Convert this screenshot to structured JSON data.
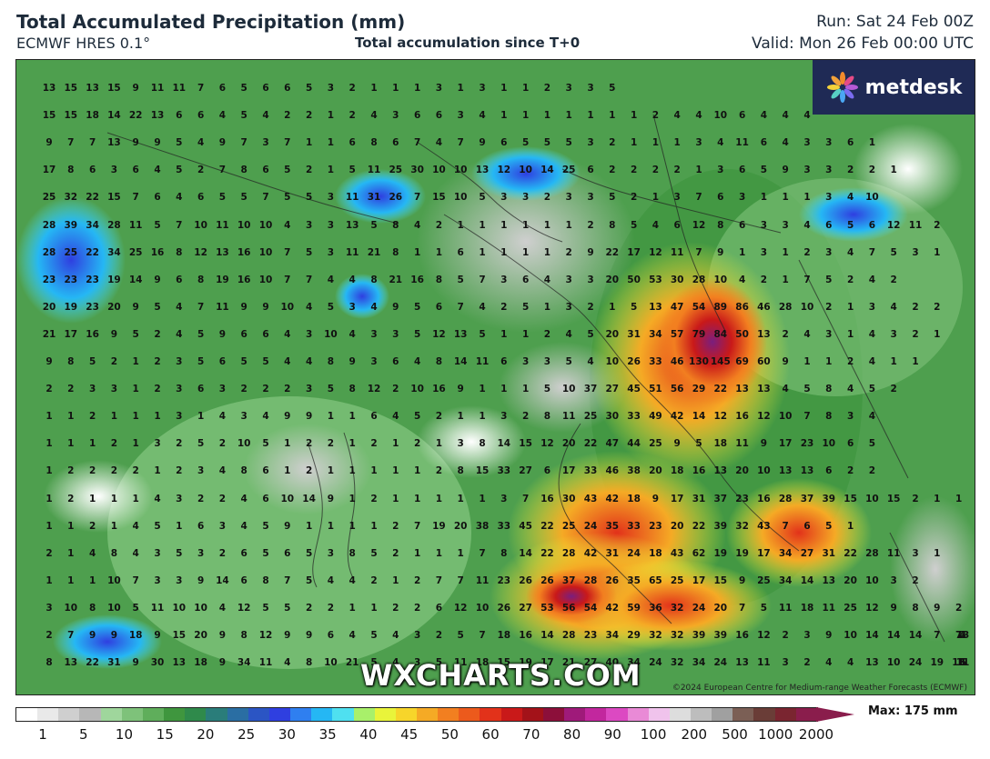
{
  "header": {
    "title": "Total Accumulated Precipitation (mm)",
    "model": "ECMWF HRES 0.1°",
    "subtitle": "Total accumulation since T+0",
    "run": "Run: Sat 24 Feb 00Z",
    "valid": "Valid: Mon 26 Feb 00:00 UTC"
  },
  "logo": {
    "text": "metdesk",
    "icon": "metdesk-flower-icon"
  },
  "watermark": "WXCHARTS.COM",
  "copyright": "©2024 European Centre for Medium-range Weather Forecasts (ECMWF)",
  "legend": {
    "max_label": "Max: 175 mm",
    "tick_labels": [
      "1",
      "5",
      "10",
      "15",
      "20",
      "25",
      "30",
      "35",
      "40",
      "45",
      "50",
      "60",
      "70",
      "80",
      "90",
      "100",
      "200",
      "500",
      "1000",
      "2000"
    ],
    "colors": [
      "#ffffff",
      "#e9e9e9",
      "#cfcfcf",
      "#b7b7b7",
      "#9fd69c",
      "#7ec27a",
      "#5fae5b",
      "#3f963e",
      "#2f8a4b",
      "#2a7d7a",
      "#2a6ea3",
      "#2b55c4",
      "#2f3fe0",
      "#2f7ff0",
      "#25b7f4",
      "#4fe0f0",
      "#a8f06a",
      "#e9f43a",
      "#f7d52a",
      "#f5aa25",
      "#f27f20",
      "#ec5a1c",
      "#e2321a",
      "#c91919",
      "#a31219",
      "#8c0f3a",
      "#9f1a7a",
      "#c2279e",
      "#dc49c2",
      "#e98ad6",
      "#f0c3ec",
      "#dddddd",
      "#bdbdbd",
      "#a0a0a0",
      "#7b5f55",
      "#6a3d37",
      "#7a2530",
      "#8a1d4c"
    ]
  },
  "map_values": [
    [
      "13",
      "15",
      "13",
      "15",
      "9",
      "11",
      "11",
      "7",
      "6",
      "5",
      "6",
      "6",
      "5",
      "3",
      "2",
      "1",
      "1",
      "1",
      "3",
      "1",
      "3",
      "1",
      "1",
      "2",
      "3",
      "3",
      "5"
    ],
    [
      "15",
      "15",
      "18",
      "14",
      "22",
      "13",
      "6",
      "6",
      "4",
      "5",
      "4",
      "2",
      "2",
      "1",
      "2",
      "4",
      "3",
      "6",
      "6",
      "3",
      "4",
      "1",
      "1",
      "1",
      "1",
      "1",
      "1",
      "1",
      "2",
      "4",
      "4",
      "10",
      "6",
      "4",
      "4",
      "4"
    ],
    [
      "9",
      "7",
      "7",
      "13",
      "9",
      "9",
      "5",
      "4",
      "9",
      "7",
      "3",
      "7",
      "1",
      "1",
      "6",
      "8",
      "6",
      "7",
      "4",
      "7",
      "9",
      "6",
      "5",
      "5",
      "5",
      "3",
      "2",
      "1",
      "1",
      "1",
      "3",
      "4",
      "11",
      "6",
      "4",
      "3",
      "3",
      "6",
      "1"
    ],
    [
      "17",
      "8",
      "6",
      "3",
      "6",
      "4",
      "5",
      "2",
      "7",
      "8",
      "6",
      "5",
      "2",
      "1",
      "5",
      "11",
      "25",
      "30",
      "10",
      "10",
      "13",
      "12",
      "10",
      "14",
      "25",
      "6",
      "2",
      "2",
      "2",
      "2",
      "1",
      "3",
      "6",
      "5",
      "9",
      "3",
      "3",
      "2",
      "2",
      "1"
    ],
    [
      "25",
      "32",
      "22",
      "15",
      "7",
      "6",
      "4",
      "6",
      "5",
      "5",
      "7",
      "5",
      "5",
      "3",
      "11",
      "31",
      "26",
      "7",
      "15",
      "10",
      "5",
      "3",
      "3",
      "2",
      "3",
      "3",
      "5",
      "2",
      "1",
      "3",
      "7",
      "6",
      "3",
      "1",
      "1",
      "1",
      "3",
      "4",
      "10"
    ],
    [
      "28",
      "39",
      "34",
      "28",
      "11",
      "5",
      "7",
      "10",
      "11",
      "10",
      "10",
      "4",
      "3",
      "3",
      "13",
      "5",
      "8",
      "4",
      "2",
      "1",
      "1",
      "1",
      "1",
      "1",
      "1",
      "2",
      "8",
      "5",
      "4",
      "6",
      "12",
      "8",
      "6",
      "3",
      "3",
      "4",
      "6",
      "5",
      "6",
      "12",
      "11",
      "2"
    ],
    [
      "28",
      "25",
      "22",
      "34",
      "25",
      "16",
      "8",
      "12",
      "13",
      "16",
      "10",
      "7",
      "5",
      "3",
      "11",
      "21",
      "8",
      "1",
      "1",
      "6",
      "1",
      "1",
      "1",
      "1",
      "2",
      "9",
      "22",
      "17",
      "12",
      "11",
      "7",
      "9",
      "1",
      "3",
      "1",
      "2",
      "3",
      "4",
      "7",
      "5",
      "3",
      "1"
    ],
    [
      "23",
      "23",
      "23",
      "19",
      "14",
      "9",
      "6",
      "8",
      "19",
      "16",
      "10",
      "7",
      "7",
      "4",
      "4",
      "8",
      "21",
      "16",
      "8",
      "5",
      "7",
      "3",
      "6",
      "4",
      "3",
      "3",
      "20",
      "50",
      "53",
      "30",
      "28",
      "10",
      "4",
      "2",
      "1",
      "7",
      "5",
      "2",
      "4",
      "2"
    ],
    [
      "20",
      "19",
      "23",
      "20",
      "9",
      "5",
      "4",
      "7",
      "11",
      "9",
      "9",
      "10",
      "4",
      "5",
      "3",
      "4",
      "9",
      "5",
      "6",
      "7",
      "4",
      "2",
      "5",
      "1",
      "3",
      "2",
      "1",
      "5",
      "13",
      "47",
      "54",
      "89",
      "86",
      "46",
      "28",
      "10",
      "2",
      "1",
      "3",
      "4",
      "2",
      "2"
    ],
    [
      "21",
      "17",
      "16",
      "9",
      "5",
      "2",
      "4",
      "5",
      "9",
      "6",
      "6",
      "4",
      "3",
      "10",
      "4",
      "3",
      "3",
      "5",
      "12",
      "13",
      "5",
      "1",
      "1",
      "2",
      "4",
      "5",
      "20",
      "31",
      "34",
      "57",
      "79",
      "84",
      "50",
      "13",
      "2",
      "4",
      "3",
      "1",
      "4",
      "3",
      "2",
      "1"
    ],
    [
      "9",
      "8",
      "5",
      "2",
      "1",
      "2",
      "3",
      "5",
      "6",
      "5",
      "5",
      "4",
      "4",
      "8",
      "9",
      "3",
      "6",
      "4",
      "8",
      "14",
      "11",
      "6",
      "3",
      "3",
      "5",
      "4",
      "10",
      "26",
      "33",
      "46",
      "130",
      "145",
      "69",
      "60",
      "9",
      "1",
      "1",
      "2",
      "4",
      "1",
      "1"
    ],
    [
      "2",
      "2",
      "3",
      "3",
      "1",
      "2",
      "3",
      "6",
      "3",
      "2",
      "2",
      "2",
      "3",
      "5",
      "8",
      "12",
      "2",
      "10",
      "16",
      "9",
      "1",
      "1",
      "1",
      "5",
      "10",
      "37",
      "27",
      "45",
      "51",
      "56",
      "29",
      "22",
      "13",
      "13",
      "4",
      "5",
      "8",
      "4",
      "5",
      "2"
    ],
    [
      "1",
      "1",
      "2",
      "1",
      "1",
      "1",
      "3",
      "1",
      "4",
      "3",
      "4",
      "9",
      "9",
      "1",
      "1",
      "6",
      "4",
      "5",
      "2",
      "1",
      "1",
      "3",
      "2",
      "8",
      "11",
      "25",
      "30",
      "33",
      "49",
      "42",
      "14",
      "12",
      "16",
      "12",
      "10",
      "7",
      "8",
      "3",
      "4"
    ],
    [
      "1",
      "1",
      "1",
      "2",
      "1",
      "3",
      "2",
      "5",
      "2",
      "10",
      "5",
      "1",
      "2",
      "2",
      "1",
      "2",
      "1",
      "2",
      "1",
      "3",
      "8",
      "14",
      "15",
      "12",
      "20",
      "22",
      "47",
      "44",
      "25",
      "9",
      "5",
      "18",
      "11",
      "9",
      "17",
      "23",
      "10",
      "6",
      "5"
    ],
    [
      "1",
      "2",
      "2",
      "2",
      "2",
      "1",
      "2",
      "3",
      "4",
      "8",
      "6",
      "1",
      "2",
      "1",
      "1",
      "1",
      "1",
      "1",
      "2",
      "8",
      "15",
      "33",
      "27",
      "6",
      "17",
      "33",
      "46",
      "38",
      "20",
      "18",
      "16",
      "13",
      "20",
      "10",
      "13",
      "13",
      "6",
      "2",
      "2"
    ],
    [
      "1",
      "2",
      "1",
      "1",
      "1",
      "4",
      "3",
      "2",
      "2",
      "4",
      "6",
      "10",
      "14",
      "9",
      "1",
      "2",
      "1",
      "1",
      "1",
      "1",
      "1",
      "3",
      "7",
      "16",
      "30",
      "43",
      "42",
      "18",
      "9",
      "17",
      "31",
      "37",
      "23",
      "16",
      "28",
      "37",
      "39",
      "15",
      "10",
      "15",
      "2",
      "1",
      "1"
    ],
    [
      "1",
      "1",
      "2",
      "1",
      "4",
      "5",
      "1",
      "6",
      "3",
      "4",
      "5",
      "9",
      "1",
      "1",
      "1",
      "1",
      "2",
      "7",
      "19",
      "20",
      "38",
      "33",
      "45",
      "22",
      "25",
      "24",
      "35",
      "33",
      "23",
      "20",
      "22",
      "39",
      "32",
      "43",
      "7",
      "6",
      "5",
      "1"
    ],
    [
      "2",
      "1",
      "4",
      "8",
      "4",
      "3",
      "5",
      "3",
      "2",
      "6",
      "5",
      "6",
      "5",
      "3",
      "8",
      "5",
      "2",
      "1",
      "1",
      "1",
      "7",
      "8",
      "14",
      "22",
      "28",
      "42",
      "31",
      "24",
      "18",
      "43",
      "62",
      "19",
      "19",
      "17",
      "34",
      "27",
      "31",
      "22",
      "28",
      "11",
      "3",
      "1"
    ],
    [
      "1",
      "1",
      "1",
      "10",
      "7",
      "3",
      "3",
      "9",
      "14",
      "6",
      "8",
      "7",
      "5",
      "4",
      "4",
      "2",
      "1",
      "2",
      "7",
      "7",
      "11",
      "23",
      "26",
      "26",
      "37",
      "28",
      "26",
      "35",
      "65",
      "25",
      "17",
      "15",
      "9",
      "25",
      "34",
      "14",
      "13",
      "20",
      "10",
      "3",
      "2"
    ],
    [
      "3",
      "10",
      "8",
      "10",
      "5",
      "11",
      "10",
      "10",
      "4",
      "12",
      "5",
      "5",
      "2",
      "2",
      "1",
      "1",
      "2",
      "2",
      "6",
      "12",
      "10",
      "26",
      "27",
      "53",
      "56",
      "54",
      "42",
      "59",
      "36",
      "32",
      "24",
      "20",
      "7",
      "5",
      "11",
      "18",
      "11",
      "25",
      "12",
      "9",
      "8",
      "9",
      "2"
    ],
    [
      "2",
      "7",
      "9",
      "9",
      "18",
      "9",
      "15",
      "20",
      "9",
      "8",
      "12",
      "9",
      "9",
      "6",
      "4",
      "5",
      "4",
      "3",
      "2",
      "5",
      "7",
      "18",
      "16",
      "14",
      "28",
      "23",
      "34",
      "29",
      "32",
      "32",
      "39",
      "39",
      "16",
      "12",
      "2",
      "3",
      "9",
      "10",
      "14",
      "14",
      "14",
      "7",
      "7",
      "13",
      "3",
      "4"
    ],
    [
      "8",
      "13",
      "22",
      "31",
      "9",
      "30",
      "13",
      "18",
      "9",
      "34",
      "11",
      "4",
      "8",
      "10",
      "21",
      "5",
      "4",
      "3",
      "5",
      "11",
      "18",
      "15",
      "19",
      "17",
      "21",
      "27",
      "40",
      "34",
      "24",
      "32",
      "34",
      "24",
      "13",
      "11",
      "3",
      "2",
      "4",
      "4",
      "13",
      "10",
      "24",
      "19",
      "13",
      "11",
      "6",
      "5"
    ]
  ]
}
